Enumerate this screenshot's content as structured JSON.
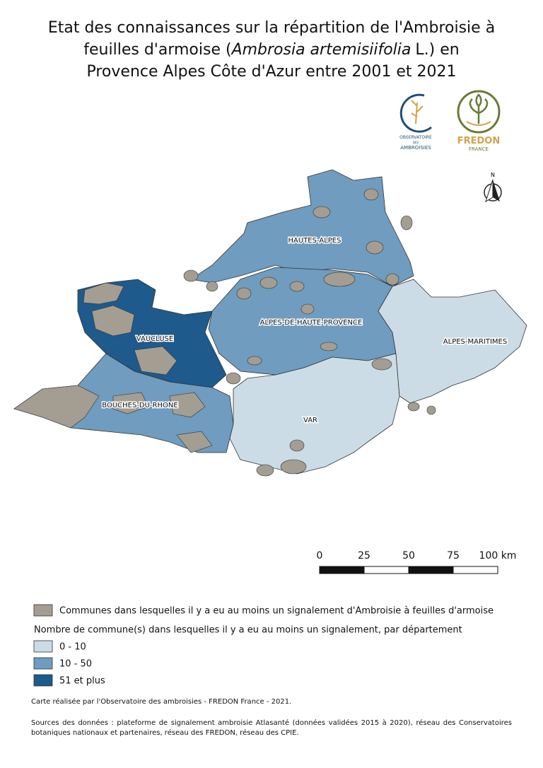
{
  "title": {
    "line1": "Etat des connaissances sur la répartition de l'Ambroisie à",
    "line2_start": "feuilles d'armoise (",
    "line2_italic": "Ambrosia artemisiifolia",
    "line2_end": "L.) en",
    "line3": "Provence Alpes Côte d'Azur entre 2001 et 2021"
  },
  "logos": {
    "observatoire": [
      "OBSERVATOIRE",
      "DES",
      "AMBROISIES"
    ],
    "fredon": [
      "FREDON",
      "FRANCE"
    ]
  },
  "north": "N",
  "departments": [
    {
      "name": "HAUTES-ALPES",
      "class": 1
    },
    {
      "name": "ALPES-DE-HAUTE-PROVENCE",
      "class": 1
    },
    {
      "name": "VAUCLUSE",
      "class": 2
    },
    {
      "name": "BOUCHES-DU-RHONE",
      "class": 1
    },
    {
      "name": "VAR",
      "class": 0
    },
    {
      "name": "ALPES-MARITIMES",
      "class": 0
    }
  ],
  "scale": {
    "ticks": [
      0,
      25,
      50,
      75,
      {
        "value": 100,
        "label": "100 km"
      }
    ]
  },
  "legend": {
    "communes": {
      "label": "Communes dans lesquelles il y a eu au moins un signalement d'Ambroisie à feuilles d'armoise",
      "color": "#a39d92"
    },
    "heading": "Nombre de commune(s) dans lesquelles il y a eu au moins un signalement, par département",
    "classes": [
      {
        "label": "0 - 10",
        "color": "#ccdce6"
      },
      {
        "label": "10 - 50",
        "color": "#6f9cbf"
      },
      {
        "label": "51 et plus",
        "color": "#1e5a8b"
      }
    ]
  },
  "footer": {
    "credit": "Carte réalisée par l'Observatoire des ambroisies - FREDON France - 2021.",
    "sources": "Sources des données : plateforme de signalement ambroisie Atlasanté (données validées 2015 à 2020), réseau des Conservatoires botaniques nationaux et partenaires, réseau des FREDON, réseau des CPIE."
  }
}
